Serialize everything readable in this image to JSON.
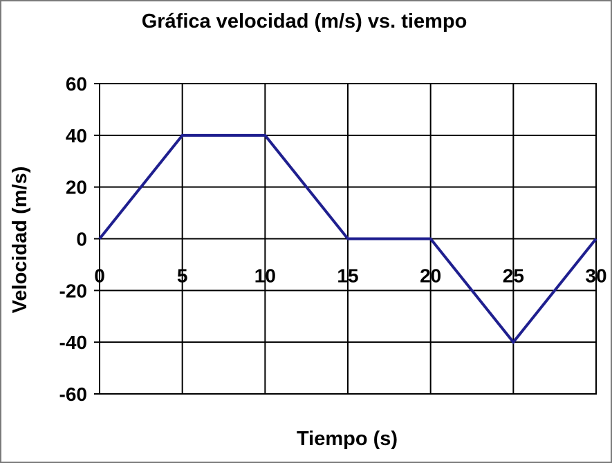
{
  "chart_data": {
    "type": "line",
    "title": "Gráfica velocidad (m/s) vs. tiempo",
    "xlabel": "Tiempo (s)",
    "ylabel": "Velocidad (m/s)",
    "x_ticks": [
      "0",
      "5",
      "10",
      "15",
      "20",
      "25",
      "30"
    ],
    "y_ticks": [
      "60",
      "40",
      "20",
      "0",
      "-20",
      "-40",
      "-60"
    ],
    "xlim": [
      0,
      30
    ],
    "ylim": [
      -60,
      60
    ],
    "grid": true,
    "legend": false,
    "series": [
      {
        "color": "#1f1f8f",
        "x": [
          0,
          5,
          10,
          15,
          20,
          25,
          30
        ],
        "y": [
          0,
          40,
          40,
          0,
          0,
          -40,
          0
        ]
      }
    ]
  }
}
